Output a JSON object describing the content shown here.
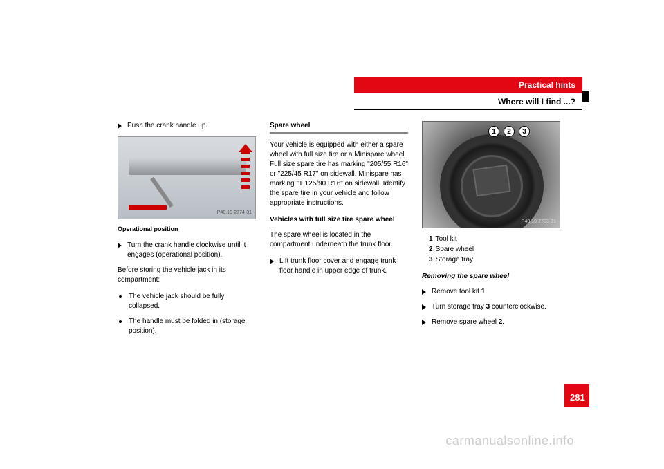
{
  "header": {
    "title": "Practical hints",
    "subtitle": "Where will I find ...?"
  },
  "col1": {
    "step1": "Push the crank handle up.",
    "figLabel": "P40.10-2774-31",
    "caption": "Operational position",
    "step2": "Turn the crank handle clockwise until it engages (operational position).",
    "para1": "Before storing the vehicle jack in its compartment:",
    "bullet1": "The vehicle jack should be fully collapsed.",
    "bullet2": "The handle must be folded in (storage position)."
  },
  "col2": {
    "heading": "Spare wheel",
    "para1": "Your vehicle is equipped with either a spare wheel with full size tire or a Minispare wheel. Full size spare tire has marking \"205/55 R16\" or \"225/45 R17\" on sidewall. Minispare has marking \"T 125/90 R16\" on sidewall. Identify the spare tire in your vehicle and follow appropriate instructions.",
    "subheading": "Vehicles with full size tire spare wheel",
    "para2": "The spare wheel is located in the compartment underneath the trunk floor.",
    "step1": "Lift trunk floor cover and engage trunk floor handle in upper edge of trunk."
  },
  "col3": {
    "figLabel": "P40.10-2703-31",
    "callouts": {
      "c1": "1",
      "c2": "2",
      "c3": "3"
    },
    "legend": {
      "l1num": "1",
      "l1text": "Tool kit",
      "l2num": "2",
      "l2text": "Spare wheel",
      "l3num": "3",
      "l3text": "Storage tray"
    },
    "heading": "Removing the spare wheel",
    "step1a": "Remove tool kit ",
    "step1b": "1",
    "step1c": ".",
    "step2a": "Turn storage tray ",
    "step2b": "3",
    "step2c": " counterclockwise.",
    "step3a": "Remove spare wheel ",
    "step3b": "2",
    "step3c": "."
  },
  "pageNumber": "281",
  "watermark": "carmanualsonline.info"
}
